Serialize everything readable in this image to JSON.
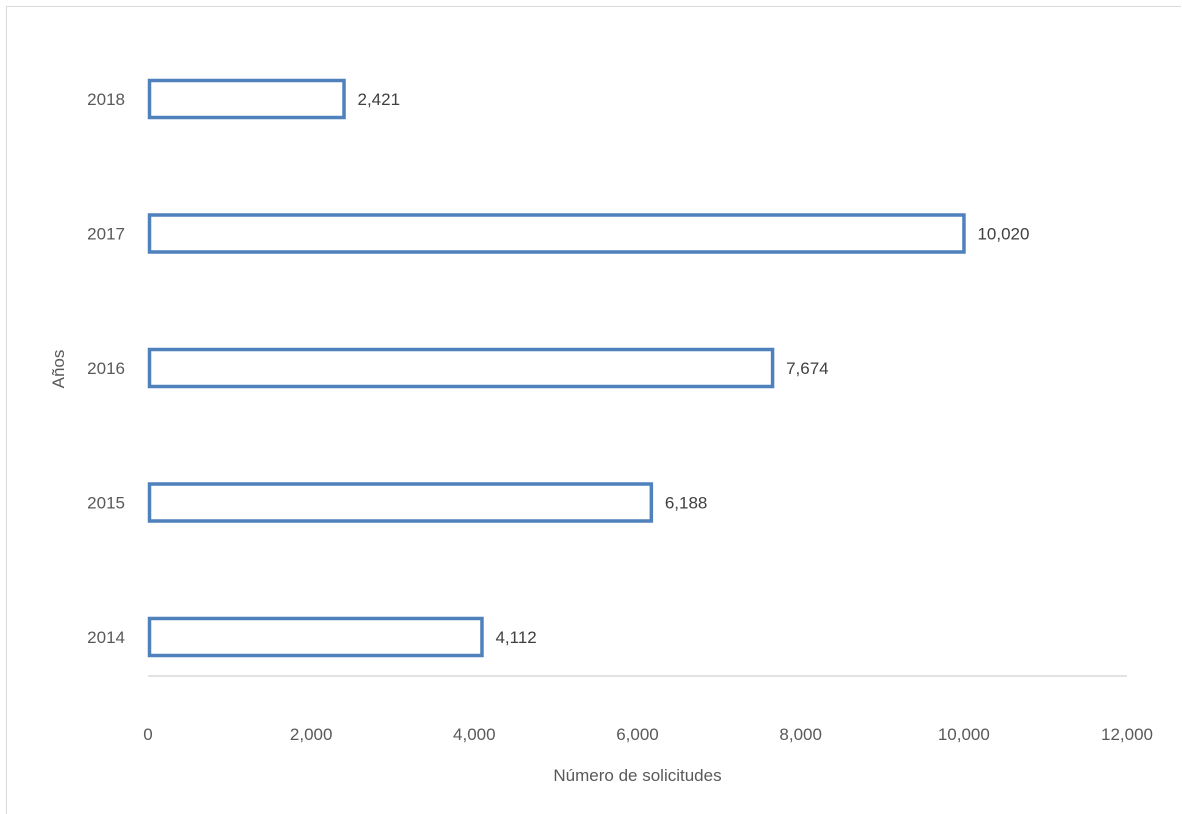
{
  "chart_data": {
    "type": "bar",
    "orientation": "horizontal",
    "categories": [
      "2014",
      "2015",
      "2016",
      "2017",
      "2018"
    ],
    "values": [
      4112,
      6188,
      7674,
      10020,
      2421
    ],
    "data_labels": [
      "4,112",
      "6,188",
      "7,674",
      "10,020",
      "2,421"
    ],
    "title": "",
    "xlabel": "Número de solicitudes",
    "ylabel": "Años",
    "xlim": [
      0,
      12000
    ],
    "x_ticks": [
      0,
      2000,
      4000,
      6000,
      8000,
      10000,
      12000
    ],
    "x_tick_labels": [
      "0",
      "2,000",
      "4,000",
      "6,000",
      "8,000",
      "10,000",
      "12,000"
    ],
    "grid": false,
    "legend": "none",
    "colors": {
      "bar_stroke": "#4f81bd",
      "bar_fill": "#ffffff",
      "axis_line": "#d9d9d9",
      "text": "#595959"
    }
  }
}
